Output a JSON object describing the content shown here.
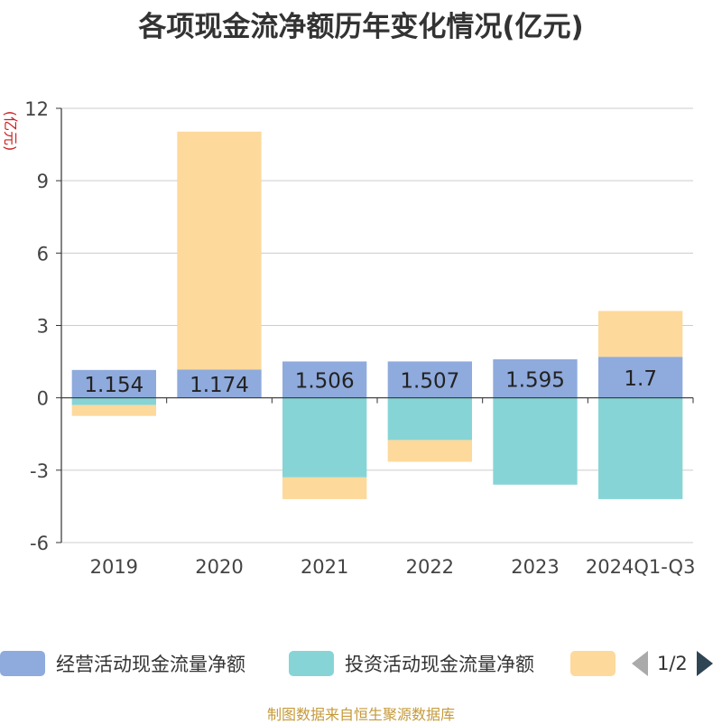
{
  "chart_data": {
    "type": "bar",
    "stacked": true,
    "title": "各项现金流净额历年变化情况(亿元)",
    "ylabel": "(亿元)",
    "xlabel": "",
    "ylim": [
      -6,
      12
    ],
    "yticks": [
      -6,
      -3,
      0,
      3,
      6,
      9,
      12
    ],
    "grid": true,
    "categories": [
      "2019",
      "2020",
      "2021",
      "2022",
      "2023",
      "2024Q1-Q3"
    ],
    "series": [
      {
        "name": "经营活动现金流量净额",
        "color": "#8faadc",
        "values": [
          1.154,
          1.174,
          1.506,
          1.507,
          1.595,
          1.7
        ],
        "labels": [
          "1.154",
          "1.174",
          "1.506",
          "1.507",
          "1.595",
          "1.7"
        ]
      },
      {
        "name": "投资活动现金流量净额",
        "color": "#87d4d6",
        "values": [
          -0.3,
          0,
          -3.3,
          -1.75,
          -3.6,
          -4.2
        ]
      },
      {
        "name": "",
        "color": "#fdd99b",
        "values": [
          -0.45,
          9.86,
          -0.9,
          -0.9,
          0,
          1.9
        ]
      }
    ],
    "legend": {
      "position": "bottom",
      "page": "1/2"
    }
  },
  "source": "制图数据来自恒生聚源数据库"
}
